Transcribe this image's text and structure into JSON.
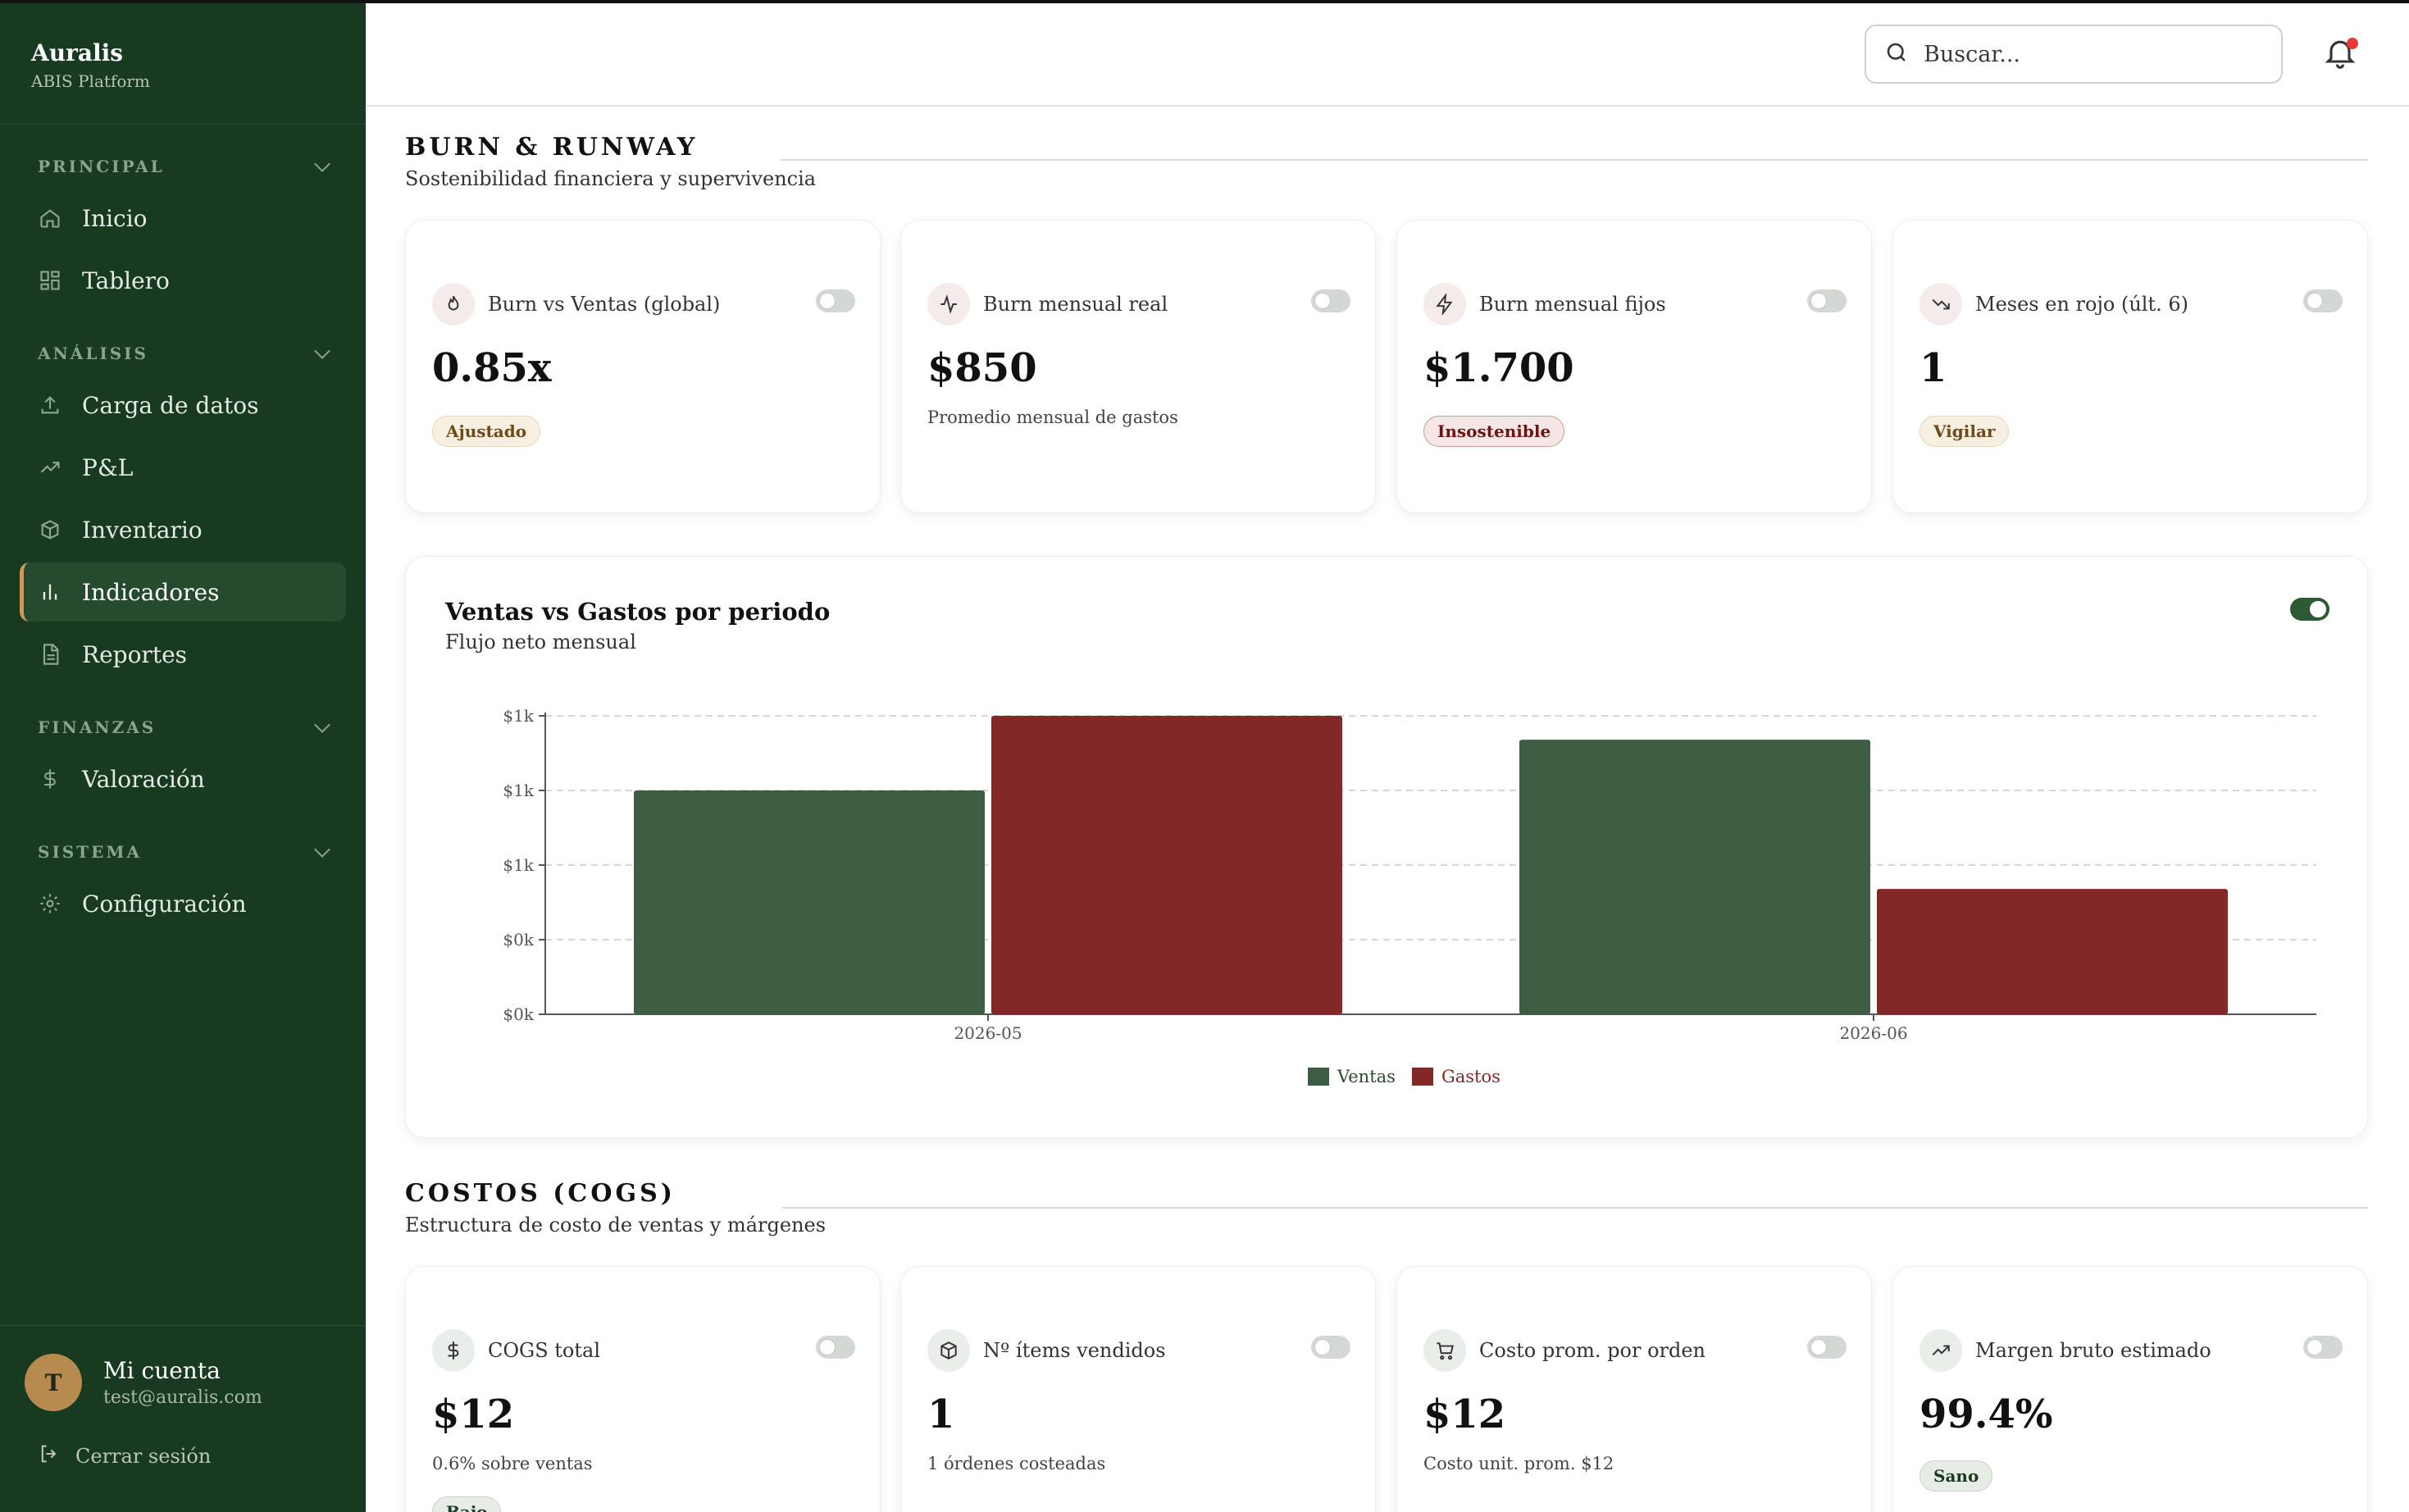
{
  "app": {
    "name": "Auralis",
    "subtitle": "ABIS Platform"
  },
  "sidebar": {
    "sections": [
      {
        "title": "PRINCIPAL",
        "items": [
          {
            "label": "Inicio",
            "icon": "home-icon"
          },
          {
            "label": "Tablero",
            "icon": "grid-icon"
          }
        ]
      },
      {
        "title": "ANÁLISIS",
        "items": [
          {
            "label": "Carga de datos",
            "icon": "upload-icon"
          },
          {
            "label": "P&L",
            "icon": "trend-up-icon"
          },
          {
            "label": "Inventario",
            "icon": "box-icon"
          },
          {
            "label": "Indicadores",
            "icon": "bar-chart-icon",
            "active": true
          },
          {
            "label": "Reportes",
            "icon": "document-icon"
          }
        ]
      },
      {
        "title": "FINANZAS",
        "items": [
          {
            "label": "Valoración",
            "icon": "dollar-icon"
          }
        ]
      },
      {
        "title": "SISTEMA",
        "items": [
          {
            "label": "Configuración",
            "icon": "gear-icon"
          }
        ]
      }
    ],
    "account": {
      "initial": "T",
      "name": "Mi cuenta",
      "email": "test@auralis.com"
    },
    "logout_label": "Cerrar sesión"
  },
  "header": {
    "search_placeholder": "Buscar...",
    "notification": true
  },
  "burn": {
    "title": "BURN & RUNWAY",
    "subtitle": "Sostenibilidad financiera y supervivencia",
    "cards": [
      {
        "label": "Burn vs Ventas (global)",
        "value": "0.85x",
        "badge": "Ajustado",
        "badge_tone": "amber",
        "icon": "flame-icon"
      },
      {
        "label": "Burn mensual real",
        "value": "$850",
        "note": "Promedio mensual de gastos",
        "icon": "activity-icon"
      },
      {
        "label": "Burn mensual fijos",
        "value": "$1.700",
        "badge": "Insostenible",
        "badge_tone": "red",
        "icon": "zap-icon"
      },
      {
        "label": "Meses en rojo (últ. 6)",
        "value": "1",
        "badge": "Vigilar",
        "badge_tone": "amber",
        "icon": "trend-down-icon"
      }
    ]
  },
  "chart": {
    "title": "Ventas vs Gastos por periodo",
    "subtitle": "Flujo neto mensual",
    "toggle_on": true
  },
  "chart_data": {
    "type": "bar",
    "categories": [
      "2026-05",
      "2026-06"
    ],
    "series": [
      {
        "name": "Ventas",
        "values": [
          1500,
          1840
        ],
        "color": "#3d5e42"
      },
      {
        "name": "Gastos",
        "values": [
          2000,
          840
        ],
        "color": "#822826"
      }
    ],
    "ytick_labels": [
      "$0k",
      "$0k",
      "$1k",
      "$1k",
      "$1k"
    ],
    "ylim": [
      0,
      2000
    ],
    "grid": true,
    "legend": "bottom-center"
  },
  "cogs": {
    "title": "COSTOS (COGS)",
    "subtitle": "Estructura de costo de ventas y márgenes",
    "cards": [
      {
        "label": "COGS total",
        "value": "$12",
        "note": "0.6% sobre ventas",
        "badge": "Bajo",
        "badge_tone": "green",
        "icon": "dollar-icon"
      },
      {
        "label": "Nº ítems vendidos",
        "value": "1",
        "note": "1 órdenes costeadas",
        "icon": "box-icon"
      },
      {
        "label": "Costo prom. por orden",
        "value": "$12",
        "note": "Costo unit. prom. $12",
        "icon": "cart-icon"
      },
      {
        "label": "Margen bruto estimado",
        "value": "99.4%",
        "badge": "Sano",
        "badge_tone": "green",
        "icon": "trend-up-icon"
      }
    ]
  }
}
